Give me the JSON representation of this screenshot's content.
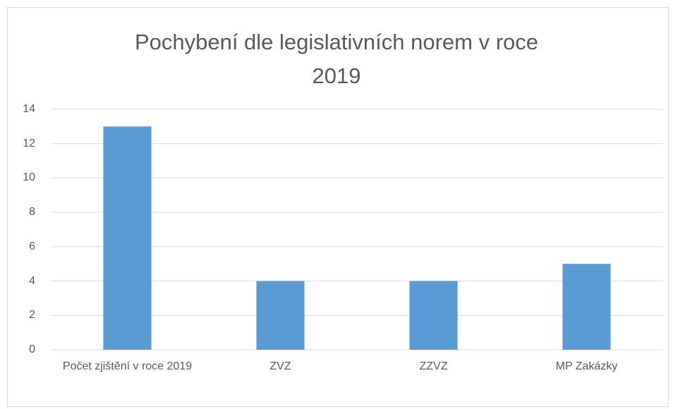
{
  "chart_data": {
    "type": "bar",
    "title": "Pochybení dle legislativních norem v roce 2019",
    "categories": [
      "Počet zjištění v roce 2019",
      "ZVZ",
      "ZZVZ",
      "MP Zakázky"
    ],
    "values": [
      13,
      4,
      4,
      5
    ],
    "color": "#5b9bd5",
    "ylim": [
      0,
      14
    ],
    "yticks": [
      0,
      2,
      4,
      6,
      8,
      10,
      12,
      14
    ],
    "grid": true
  }
}
